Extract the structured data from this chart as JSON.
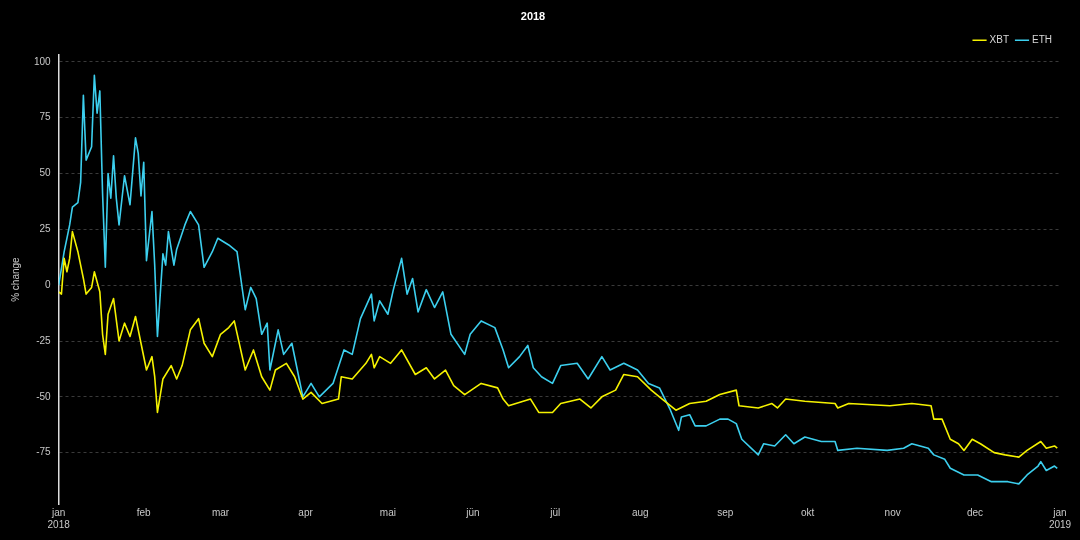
{
  "chart_data": {
    "type": "line",
    "title": "2018",
    "ylabel": "% change",
    "xlim": [
      "2018-01-01",
      "2019-01-01"
    ],
    "xticks": [
      {
        "value": "2018-01-01",
        "label": "jan 2018"
      },
      {
        "value": "2018-02-01",
        "label": "feb"
      },
      {
        "value": "2018-03-01",
        "label": "mar"
      },
      {
        "value": "2018-04-01",
        "label": "apr"
      },
      {
        "value": "2018-05-01",
        "label": "mai"
      },
      {
        "value": "2018-06-01",
        "label": "jün"
      },
      {
        "value": "2018-07-01",
        "label": "jül"
      },
      {
        "value": "2018-08-01",
        "label": "aug"
      },
      {
        "value": "2018-09-01",
        "label": "sep"
      },
      {
        "value": "2018-10-01",
        "label": "okt"
      },
      {
        "value": "2018-11-01",
        "label": "nov"
      },
      {
        "value": "2018-12-01",
        "label": "dec"
      },
      {
        "value": "2019-01-01",
        "label": "jan 2019"
      }
    ],
    "ylim": [
      -98,
      103
    ],
    "yticks": [
      -75,
      -50,
      -25,
      0,
      25,
      50,
      75,
      100
    ],
    "grid": "y",
    "legend": "top right",
    "marker": "none",
    "line_style": "solid",
    "series": [
      {
        "name": "XBT",
        "color": "#f5f200",
        "x": [
          "2018-01-01",
          "2018-01-02",
          "2018-01-03",
          "2018-01-04",
          "2018-01-05",
          "2018-01-06",
          "2018-01-08",
          "2018-01-09",
          "2018-01-10",
          "2018-01-11",
          "2018-01-13",
          "2018-01-14",
          "2018-01-16",
          "2018-01-17",
          "2018-01-18",
          "2018-01-19",
          "2018-01-21",
          "2018-01-23",
          "2018-01-25",
          "2018-01-27",
          "2018-01-29",
          "2018-01-31",
          "2018-02-02",
          "2018-02-04",
          "2018-02-05",
          "2018-02-06",
          "2018-02-08",
          "2018-02-11",
          "2018-02-13",
          "2018-02-15",
          "2018-02-18",
          "2018-02-21",
          "2018-02-23",
          "2018-02-26",
          "2018-03-01",
          "2018-03-04",
          "2018-03-06",
          "2018-03-10",
          "2018-03-13",
          "2018-03-16",
          "2018-03-19",
          "2018-03-21",
          "2018-03-25",
          "2018-03-28",
          "2018-03-31",
          "2018-04-03",
          "2018-04-07",
          "2018-04-13",
          "2018-04-14",
          "2018-04-18",
          "2018-04-23",
          "2018-04-25",
          "2018-04-26",
          "2018-04-28",
          "2018-05-02",
          "2018-05-06",
          "2018-05-11",
          "2018-05-15",
          "2018-05-18",
          "2018-05-22",
          "2018-05-25",
          "2018-05-29",
          "2018-06-04",
          "2018-06-10",
          "2018-06-12",
          "2018-06-14",
          "2018-06-22",
          "2018-06-25",
          "2018-06-30",
          "2018-07-03",
          "2018-07-10",
          "2018-07-14",
          "2018-07-18",
          "2018-07-23",
          "2018-07-26",
          "2018-07-31",
          "2018-08-05",
          "2018-08-09",
          "2018-08-14",
          "2018-08-19",
          "2018-08-25",
          "2018-08-30",
          "2018-09-05",
          "2018-09-06",
          "2018-09-13",
          "2018-09-18",
          "2018-09-20",
          "2018-09-23",
          "2018-09-30",
          "2018-10-11",
          "2018-10-12",
          "2018-10-16",
          "2018-10-31",
          "2018-11-08",
          "2018-11-15",
          "2018-11-16",
          "2018-11-19",
          "2018-11-22",
          "2018-11-25",
          "2018-11-27",
          "2018-11-30",
          "2018-12-03",
          "2018-12-08",
          "2018-12-12",
          "2018-12-17",
          "2018-12-20",
          "2018-12-25",
          "2018-12-27",
          "2018-12-30",
          "2018-12-31"
        ],
        "values": [
          -3,
          -4,
          12,
          6,
          12,
          24,
          15,
          9,
          3,
          -4,
          -1,
          6,
          -3,
          -22,
          -31,
          -13,
          -6,
          -25,
          -17,
          -23,
          -14,
          -26,
          -38,
          -32,
          -41,
          -57,
          -42,
          -36,
          -42,
          -36,
          -20,
          -15,
          -26,
          -32,
          -22,
          -19,
          -16,
          -38,
          -29,
          -41,
          -47,
          -38,
          -35,
          -41,
          -51,
          -48,
          -53,
          -51,
          -41,
          -42,
          -35,
          -31,
          -37,
          -32,
          -35,
          -29,
          -40,
          -37,
          -42,
          -38,
          -45,
          -49,
          -44,
          -46,
          -51,
          -54,
          -51,
          -57,
          -57,
          -53,
          -51,
          -55,
          -50,
          -47,
          -40,
          -41,
          -47,
          -51,
          -56,
          -53,
          -52,
          -49,
          -47,
          -54,
          -55,
          -53,
          -55,
          -51,
          -52,
          -53,
          -55,
          -53,
          -54,
          -53,
          -54,
          -60,
          -60,
          -69,
          -71,
          -74,
          -69,
          -71,
          -75,
          -76,
          -77,
          -74,
          -70,
          -73,
          -72,
          -73
        ]
      },
      {
        "name": "ETH",
        "color": "#3ccfee",
        "x": [
          "2018-01-01",
          "2018-01-03",
          "2018-01-04",
          "2018-01-05",
          "2018-01-06",
          "2018-01-08",
          "2018-01-09",
          "2018-01-10",
          "2018-01-11",
          "2018-01-13",
          "2018-01-14",
          "2018-01-15",
          "2018-01-16",
          "2018-01-17",
          "2018-01-18",
          "2018-01-19",
          "2018-01-20",
          "2018-01-21",
          "2018-01-22",
          "2018-01-23",
          "2018-01-25",
          "2018-01-27",
          "2018-01-29",
          "2018-01-30",
          "2018-01-31",
          "2018-02-01",
          "2018-02-02",
          "2018-02-04",
          "2018-02-05",
          "2018-02-06",
          "2018-02-08",
          "2018-02-09",
          "2018-02-10",
          "2018-02-12",
          "2018-02-13",
          "2018-02-16",
          "2018-02-18",
          "2018-02-21",
          "2018-02-23",
          "2018-02-26",
          "2018-02-28",
          "2018-03-04",
          "2018-03-07",
          "2018-03-10",
          "2018-03-12",
          "2018-03-14",
          "2018-03-16",
          "2018-03-18",
          "2018-03-19",
          "2018-03-22",
          "2018-03-24",
          "2018-03-27",
          "2018-03-29",
          "2018-03-31",
          "2018-04-03",
          "2018-04-06",
          "2018-04-11",
          "2018-04-15",
          "2018-04-18",
          "2018-04-21",
          "2018-04-25",
          "2018-04-26",
          "2018-04-28",
          "2018-05-01",
          "2018-05-03",
          "2018-05-06",
          "2018-05-08",
          "2018-05-10",
          "2018-05-12",
          "2018-05-15",
          "2018-05-18",
          "2018-05-21",
          "2018-05-24",
          "2018-05-29",
          "2018-05-31",
          "2018-06-04",
          "2018-06-09",
          "2018-06-12",
          "2018-06-14",
          "2018-06-18",
          "2018-06-21",
          "2018-06-23",
          "2018-06-26",
          "2018-06-30",
          "2018-07-03",
          "2018-07-09",
          "2018-07-13",
          "2018-07-18",
          "2018-07-21",
          "2018-07-26",
          "2018-07-31",
          "2018-08-04",
          "2018-08-08",
          "2018-08-12",
          "2018-08-15",
          "2018-08-16",
          "2018-08-19",
          "2018-08-21",
          "2018-08-25",
          "2018-08-30",
          "2018-09-02",
          "2018-09-05",
          "2018-09-07",
          "2018-09-13",
          "2018-09-15",
          "2018-09-19",
          "2018-09-23",
          "2018-09-26",
          "2018-09-30",
          "2018-10-06",
          "2018-10-11",
          "2018-10-12",
          "2018-10-19",
          "2018-10-30",
          "2018-11-05",
          "2018-11-08",
          "2018-11-14",
          "2018-11-16",
          "2018-11-20",
          "2018-11-22",
          "2018-11-27",
          "2018-12-02",
          "2018-12-07",
          "2018-12-13",
          "2018-12-17",
          "2018-12-20",
          "2018-12-24",
          "2018-12-25",
          "2018-12-27",
          "2018-12-30",
          "2018-12-31"
        ],
        "values": [
          0,
          15,
          21,
          27,
          35,
          37,
          46,
          85,
          56,
          62,
          94,
          77,
          87,
          41,
          8,
          50,
          39,
          58,
          39,
          27,
          49,
          36,
          66,
          59,
          40,
          55,
          11,
          33,
          9,
          -23,
          14,
          9,
          24,
          9,
          16,
          27,
          33,
          27,
          8,
          15,
          21,
          18,
          15,
          -11,
          -1,
          -6,
          -22,
          -17,
          -38,
          -20,
          -31,
          -26,
          -38,
          -50,
          -44,
          -50,
          -44,
          -29,
          -31,
          -15,
          -4,
          -16,
          -7,
          -13,
          -2,
          12,
          -4,
          3,
          -12,
          -2,
          -10,
          -3,
          -22,
          -31,
          -22,
          -16,
          -19,
          -29,
          -37,
          -32,
          -27,
          -37,
          -41,
          -44,
          -36,
          -35,
          -42,
          -32,
          -38,
          -35,
          -38,
          -44,
          -46,
          -56,
          -65,
          -59,
          -58,
          -63,
          -63,
          -60,
          -60,
          -62,
          -69,
          -76,
          -71,
          -72,
          -67,
          -71,
          -68,
          -70,
          -70,
          -74,
          -73,
          -74,
          -73,
          -71,
          -73,
          -76,
          -78,
          -82,
          -85,
          -85,
          -88,
          -88,
          -89,
          -85,
          -81,
          -79,
          -83,
          -81,
          -82
        ]
      }
    ]
  }
}
